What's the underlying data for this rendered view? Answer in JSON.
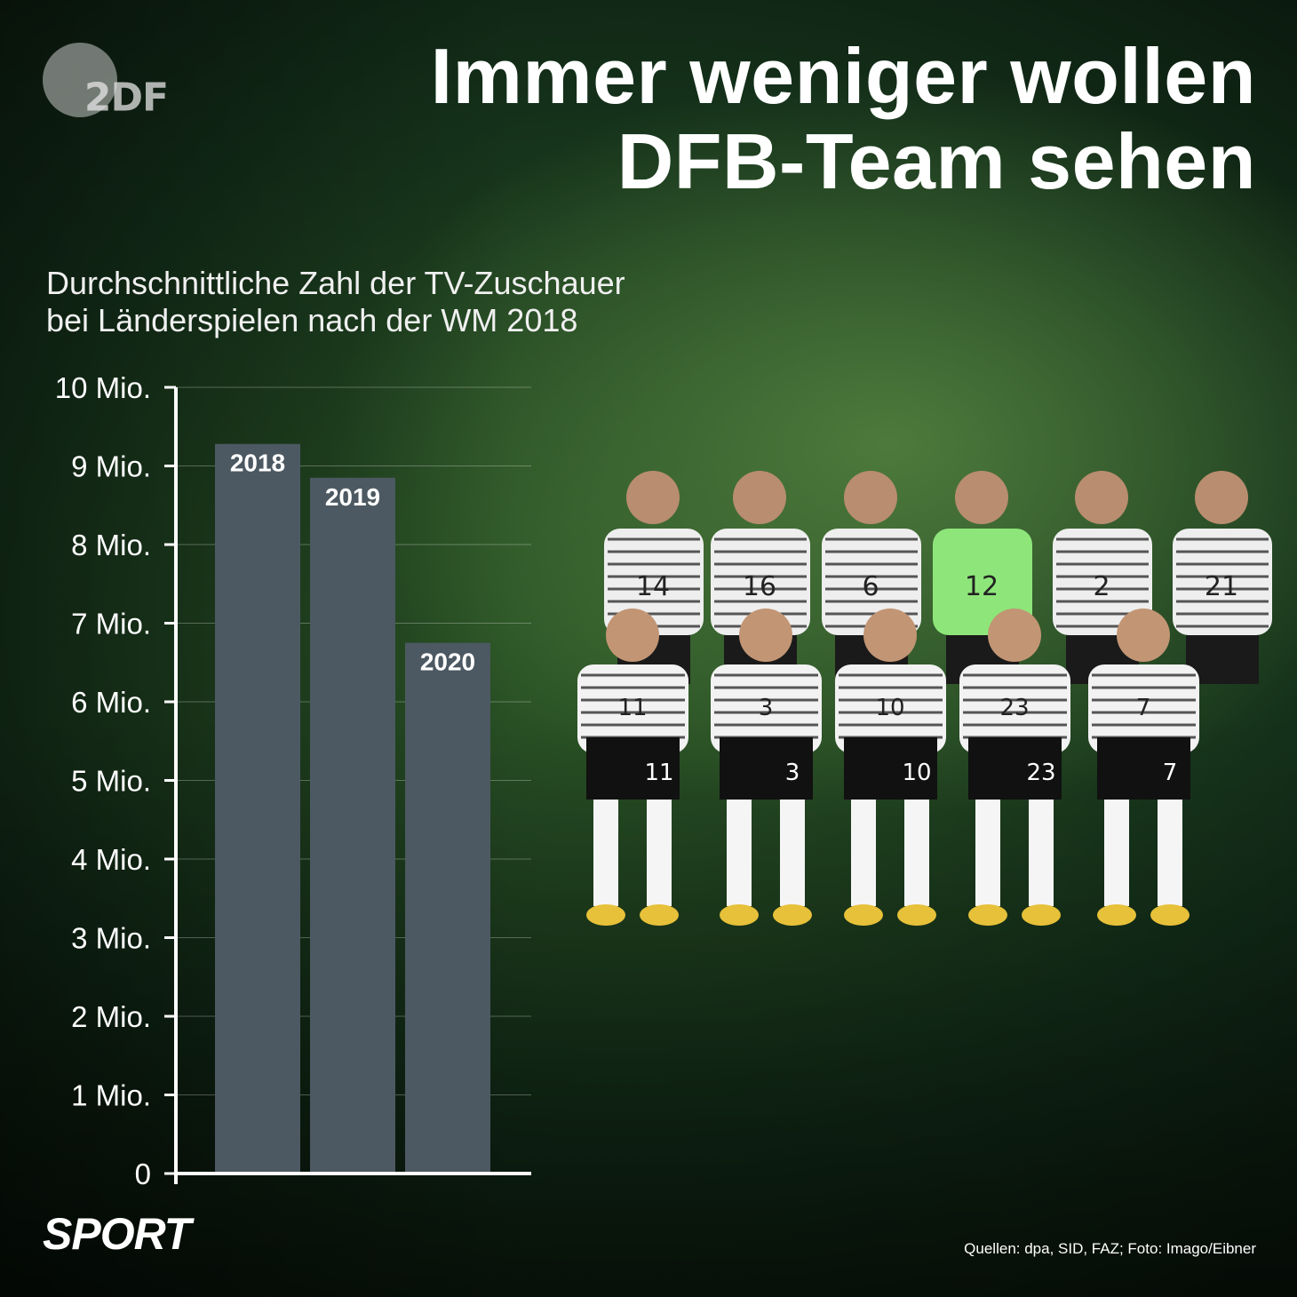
{
  "branding": {
    "logo_text": "2DF",
    "footer_label": "SPORT"
  },
  "headline": {
    "line1": "Immer weniger wollen",
    "line2": "DFB-Team sehen"
  },
  "subtitle": {
    "line1": "Durchschnittliche Zahl der TV-Zuschauer",
    "line2": "bei Länderspielen nach der WM 2018"
  },
  "source_note": "Quellen: dpa, SID, FAZ; Foto: Imago/Eibner",
  "photo": {
    "jersey_numbers_back": [
      "14",
      "16",
      "6",
      "12",
      "2",
      "21"
    ],
    "jersey_numbers_front": [
      "11",
      "3",
      "10",
      "23",
      "7"
    ]
  },
  "colors": {
    "bar": "#4c5962",
    "grid": "rgba(255,255,255,0.28)",
    "axis": "#ffffff",
    "keeper": "#8ee67a"
  },
  "chart_data": {
    "type": "bar",
    "categories": [
      "2018",
      "2019",
      "2020"
    ],
    "values": [
      9.28,
      8.85,
      6.75
    ],
    "unit": "Mio.",
    "ylim": [
      0,
      10
    ],
    "yticks": [
      {
        "value": 0,
        "label": "0"
      },
      {
        "value": 1,
        "label": "1 Mio."
      },
      {
        "value": 2,
        "label": "2 Mio."
      },
      {
        "value": 3,
        "label": "3 Mio."
      },
      {
        "value": 4,
        "label": "4 Mio."
      },
      {
        "value": 5,
        "label": "5 Mio."
      },
      {
        "value": 6,
        "label": "6 Mio."
      },
      {
        "value": 7,
        "label": "7 Mio."
      },
      {
        "value": 8,
        "label": "8 Mio."
      },
      {
        "value": 9,
        "label": "9 Mio."
      },
      {
        "value": 10,
        "label": "10 Mio."
      }
    ],
    "grid": true,
    "data_labels": "category labels inside bar tops"
  }
}
